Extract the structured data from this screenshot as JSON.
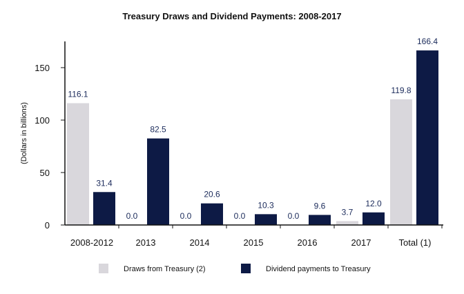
{
  "chart_data": {
    "type": "bar",
    "title": "Treasury Draws and Dividend Payments: 2008-2017",
    "ylabel": "(Dollars in billions)",
    "xlabel": "",
    "ylim": [
      0,
      175
    ],
    "yticks": [
      0,
      50,
      100,
      150
    ],
    "grid": false,
    "legend_position": "bottom",
    "categories": [
      "2008-2012",
      "2013",
      "2014",
      "2015",
      "2016",
      "2017",
      "Total (1)"
    ],
    "series": [
      {
        "name": "Draws from Treasury (2)",
        "color": "#d9d7dc",
        "values": [
          116.1,
          0.0,
          0.0,
          0.0,
          0.0,
          3.7,
          119.8
        ],
        "labels": [
          "116.1",
          "0.0",
          "0.0",
          "0.0",
          "0.0",
          "3.7",
          "119.8"
        ]
      },
      {
        "name": "Dividend payments to Treasury",
        "color": "#0d1a45",
        "values": [
          31.4,
          82.5,
          20.6,
          10.3,
          9.6,
          12.0,
          166.4
        ],
        "labels": [
          "31.4",
          "82.5",
          "20.6",
          "10.3",
          "9.6",
          "12.0",
          "166.4"
        ]
      }
    ]
  }
}
